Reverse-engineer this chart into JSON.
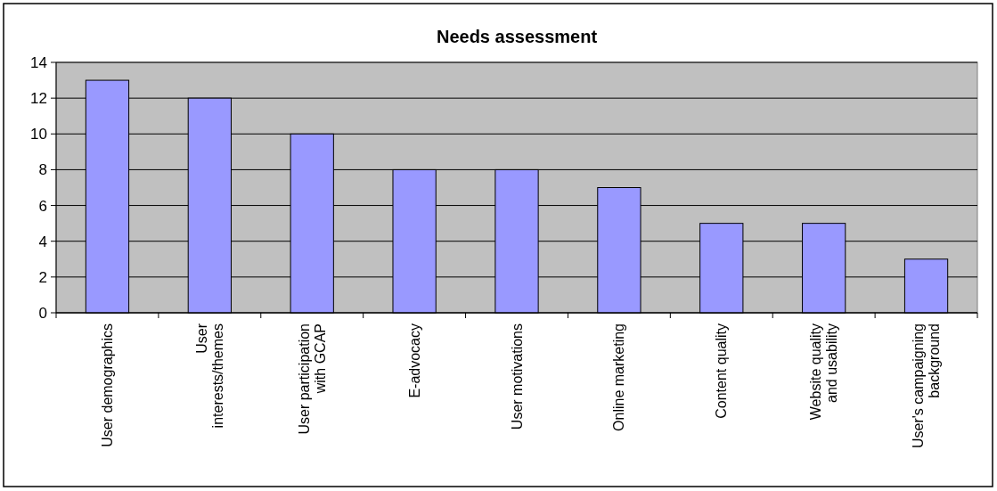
{
  "chart_data": {
    "type": "bar",
    "title": "Needs assessment",
    "categories": [
      "User demographics",
      "User interests/themes",
      "User participation with GCAP",
      "E-advocacy",
      "User motivations",
      "Online marketing",
      "Content quality",
      "Website quality and usability",
      "User's campaigning background"
    ],
    "values": [
      13,
      12,
      10,
      8,
      8,
      7,
      5,
      5,
      3
    ],
    "color": "#9999ff",
    "ylim": [
      0,
      14
    ],
    "yticks": [
      0,
      2,
      4,
      6,
      8,
      10,
      12,
      14
    ],
    "grid": "y"
  }
}
